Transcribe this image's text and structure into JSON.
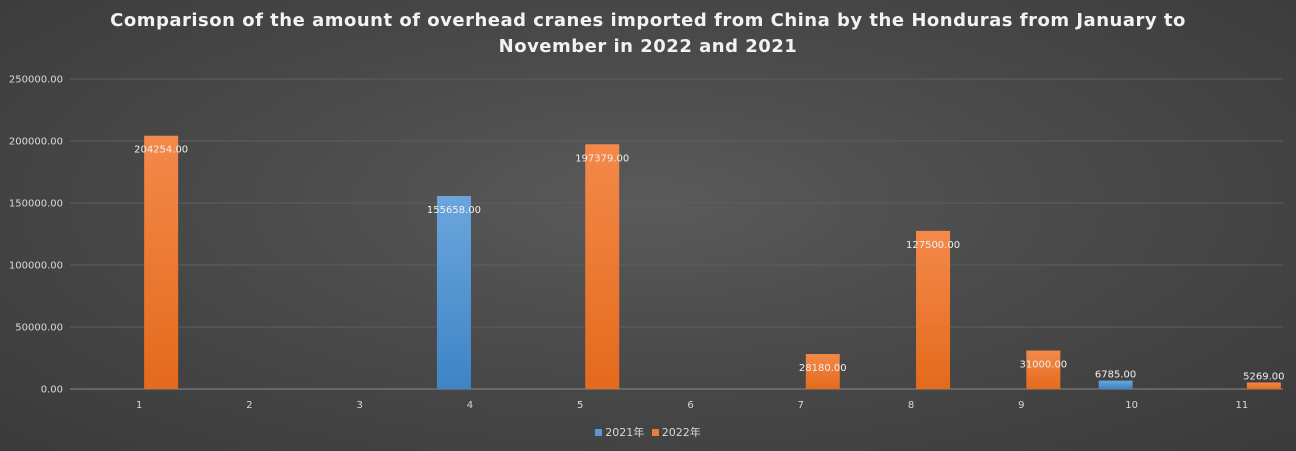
{
  "chart_data": {
    "type": "bar",
    "title_lines": [
      "Comparison of the amount of overhead cranes imported from China by the Honduras from January to",
      "November in 2022 and 2021"
    ],
    "categories": [
      "1",
      "2",
      "3",
      "4",
      "5",
      "6",
      "7",
      "8",
      "9",
      "10",
      "11"
    ],
    "series": [
      {
        "name": "2021年",
        "color": "#5b9bd5",
        "values": [
          null,
          null,
          null,
          155658.0,
          null,
          null,
          null,
          null,
          null,
          6785.0,
          null
        ]
      },
      {
        "name": "2022年",
        "color": "#ed7d31",
        "values": [
          204254.0,
          null,
          null,
          null,
          197379.0,
          null,
          28180.0,
          127500.0,
          31000.0,
          null,
          5269.0
        ]
      }
    ],
    "y_ticks": [
      "0.00",
      "50000.00",
      "100000.00",
      "150000.00",
      "200000.00",
      "250000.00"
    ],
    "ylim": [
      0,
      250000
    ],
    "grid": true,
    "legend": "bottom",
    "xlabel": "",
    "ylabel": ""
  }
}
